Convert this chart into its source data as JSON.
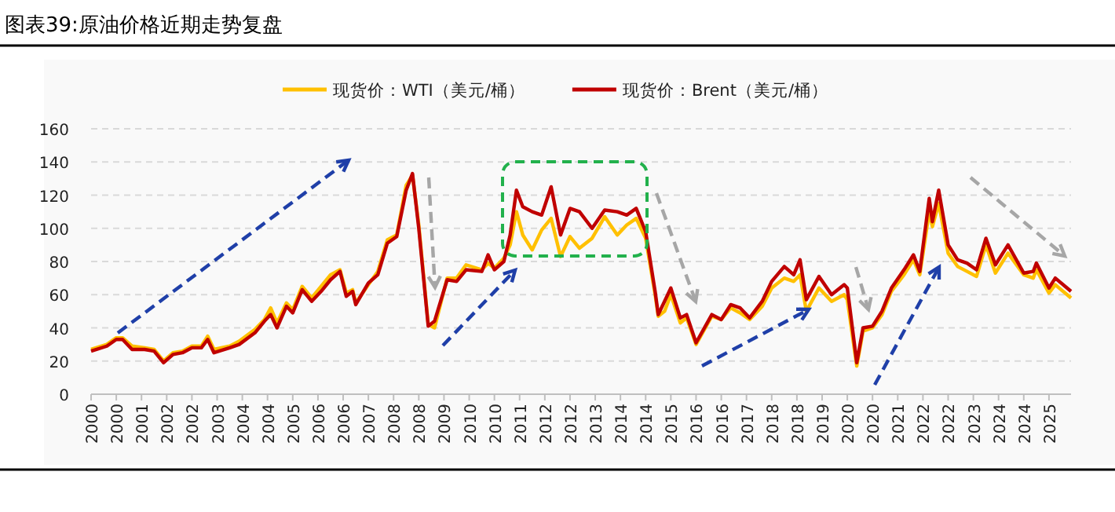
{
  "chart_data": {
    "type": "line",
    "title": "图表39:原油价格近期走势复盘",
    "ylim": [
      0,
      160
    ],
    "yticks": [
      0,
      20,
      40,
      60,
      80,
      100,
      120,
      140,
      160
    ],
    "xlim": [
      "2000-01",
      "2025-12"
    ],
    "xticks": [
      {
        "value": "2000-01",
        "label": "2000"
      },
      {
        "value": "2000-09",
        "label": "2000"
      },
      {
        "value": "2001-05",
        "label": "2001"
      },
      {
        "value": "2002-01",
        "label": "2002"
      },
      {
        "value": "2002-09",
        "label": "2002"
      },
      {
        "value": "2003-05",
        "label": "2003"
      },
      {
        "value": "2004-01",
        "label": "2004"
      },
      {
        "value": "2004-09",
        "label": "2004"
      },
      {
        "value": "2005-05",
        "label": "2005"
      },
      {
        "value": "2006-01",
        "label": "2006"
      },
      {
        "value": "2006-09",
        "label": "2006"
      },
      {
        "value": "2007-05",
        "label": "2007"
      },
      {
        "value": "2008-01",
        "label": "2008"
      },
      {
        "value": "2008-09",
        "label": "2008"
      },
      {
        "value": "2009-05",
        "label": "2009"
      },
      {
        "value": "2010-01",
        "label": "2010"
      },
      {
        "value": "2010-09",
        "label": "2010"
      },
      {
        "value": "2011-05",
        "label": "2011"
      },
      {
        "value": "2012-01",
        "label": "2012"
      },
      {
        "value": "2012-09",
        "label": "2012"
      },
      {
        "value": "2013-05",
        "label": "2013"
      },
      {
        "value": "2014-01",
        "label": "2014"
      },
      {
        "value": "2014-09",
        "label": "2014"
      },
      {
        "value": "2015-05",
        "label": "2015"
      },
      {
        "value": "2016-01",
        "label": "2016"
      },
      {
        "value": "2016-09",
        "label": "2016"
      },
      {
        "value": "2017-05",
        "label": "2017"
      },
      {
        "value": "2018-01",
        "label": "2018"
      },
      {
        "value": "2018-09",
        "label": "2018"
      },
      {
        "value": "2019-05",
        "label": "2019"
      },
      {
        "value": "2020-01",
        "label": "2020"
      },
      {
        "value": "2020-09",
        "label": "2020"
      },
      {
        "value": "2021-05",
        "label": "2021"
      },
      {
        "value": "2022-01",
        "label": "2022"
      },
      {
        "value": "2022-09",
        "label": "2022"
      },
      {
        "value": "2023-05",
        "label": "2023"
      },
      {
        "value": "2024-01",
        "label": "2024"
      },
      {
        "value": "2024-09",
        "label": "2024"
      },
      {
        "value": "2025-05",
        "label": "2025"
      }
    ],
    "grid": "y",
    "legend": "top",
    "line_style": "solid",
    "series": [
      {
        "name": "现货价：WTI（美元/桶）",
        "color": "#ffc000",
        "x": [
          "2000-01",
          "2000-06",
          "2000-09",
          "2000-11",
          "2001-02",
          "2001-06",
          "2001-09",
          "2001-12",
          "2002-03",
          "2002-06",
          "2002-09",
          "2002-12",
          "2003-02",
          "2003-04",
          "2003-09",
          "2003-12",
          "2004-05",
          "2004-08",
          "2004-10",
          "2004-12",
          "2005-03",
          "2005-05",
          "2005-08",
          "2005-11",
          "2006-02",
          "2006-05",
          "2006-08",
          "2006-10",
          "2006-12",
          "2007-01",
          "2007-05",
          "2007-08",
          "2007-11",
          "2008-02",
          "2008-05",
          "2008-07",
          "2008-09",
          "2008-12",
          "2009-02",
          "2009-06",
          "2009-09",
          "2009-12",
          "2010-05",
          "2010-07",
          "2010-09",
          "2010-12",
          "2011-02",
          "2011-04",
          "2011-06",
          "2011-09",
          "2011-12",
          "2012-03",
          "2012-06",
          "2012-09",
          "2012-12",
          "2013-04",
          "2013-08",
          "2013-12",
          "2014-03",
          "2014-06",
          "2014-09",
          "2014-12",
          "2015-01",
          "2015-03",
          "2015-05",
          "2015-08",
          "2015-10",
          "2016-01",
          "2016-06",
          "2016-09",
          "2016-12",
          "2017-03",
          "2017-06",
          "2017-10",
          "2018-01",
          "2018-05",
          "2018-08",
          "2018-10",
          "2018-12",
          "2019-04",
          "2019-08",
          "2019-12",
          "2020-01",
          "2020-04",
          "2020-06",
          "2020-09",
          "2020-12",
          "2021-03",
          "2021-07",
          "2021-10",
          "2021-12",
          "2022-03",
          "2022-04",
          "2022-06",
          "2022-09",
          "2022-12",
          "2023-03",
          "2023-06",
          "2023-09",
          "2023-12",
          "2024-04",
          "2024-09",
          "2024-12",
          "2025-01",
          "2025-05",
          "2025-07",
          "2025-12"
        ],
        "values": [
          27,
          30,
          34,
          34,
          29,
          28,
          27,
          20,
          25,
          26,
          29,
          29,
          35,
          27,
          29,
          32,
          39,
          45,
          52,
          43,
          55,
          51,
          65,
          58,
          65,
          72,
          75,
          61,
          63,
          55,
          66,
          74,
          93,
          96,
          126,
          132,
          102,
          42,
          40,
          70,
          70,
          78,
          75,
          79,
          76,
          82,
          90,
          110,
          96,
          87,
          99,
          106,
          83,
          95,
          88,
          94,
          107,
          96,
          102,
          106,
          94,
          60,
          47,
          50,
          60,
          43,
          46,
          30,
          47,
          45,
          52,
          49,
          45,
          53,
          64,
          70,
          68,
          72,
          50,
          64,
          56,
          60,
          57,
          17,
          38,
          40,
          48,
          62,
          72,
          81,
          72,
          110,
          101,
          115,
          85,
          77,
          74,
          71,
          90,
          73,
          85,
          72,
          70,
          75,
          61,
          66,
          58
        ]
      },
      {
        "name": "现货价：Brent（美元/桶）",
        "color": "#c00000",
        "x": [
          "2000-01",
          "2000-06",
          "2000-09",
          "2000-11",
          "2001-02",
          "2001-06",
          "2001-09",
          "2001-12",
          "2002-03",
          "2002-06",
          "2002-09",
          "2002-12",
          "2003-02",
          "2003-04",
          "2003-09",
          "2003-12",
          "2004-05",
          "2004-08",
          "2004-10",
          "2004-12",
          "2005-03",
          "2005-05",
          "2005-08",
          "2005-11",
          "2006-02",
          "2006-05",
          "2006-08",
          "2006-10",
          "2006-12",
          "2007-01",
          "2007-05",
          "2007-08",
          "2007-11",
          "2008-02",
          "2008-05",
          "2008-07",
          "2008-09",
          "2008-12",
          "2009-02",
          "2009-06",
          "2009-09",
          "2009-12",
          "2010-05",
          "2010-07",
          "2010-09",
          "2010-12",
          "2011-02",
          "2011-04",
          "2011-06",
          "2011-09",
          "2011-12",
          "2012-03",
          "2012-06",
          "2012-09",
          "2012-12",
          "2013-04",
          "2013-08",
          "2013-12",
          "2014-03",
          "2014-06",
          "2014-09",
          "2014-12",
          "2015-01",
          "2015-03",
          "2015-05",
          "2015-08",
          "2015-10",
          "2016-01",
          "2016-06",
          "2016-09",
          "2016-12",
          "2017-03",
          "2017-06",
          "2017-10",
          "2018-01",
          "2018-05",
          "2018-08",
          "2018-10",
          "2018-12",
          "2019-04",
          "2019-08",
          "2019-12",
          "2020-01",
          "2020-04",
          "2020-06",
          "2020-09",
          "2020-12",
          "2021-03",
          "2021-07",
          "2021-10",
          "2021-12",
          "2022-03",
          "2022-04",
          "2022-06",
          "2022-09",
          "2022-12",
          "2023-03",
          "2023-06",
          "2023-09",
          "2023-12",
          "2024-04",
          "2024-09",
          "2024-12",
          "2025-01",
          "2025-05",
          "2025-07",
          "2025-12"
        ],
        "values": [
          26,
          29,
          33,
          33,
          27,
          27,
          26,
          19,
          24,
          25,
          28,
          28,
          33,
          25,
          28,
          30,
          37,
          44,
          48,
          40,
          53,
          49,
          63,
          56,
          62,
          69,
          74,
          59,
          62,
          54,
          67,
          72,
          91,
          95,
          123,
          133,
          100,
          41,
          44,
          69,
          68,
          75,
          74,
          84,
          75,
          80,
          96,
          123,
          113,
          110,
          108,
          125,
          96,
          112,
          110,
          100,
          111,
          110,
          108,
          112,
          98,
          62,
          48,
          56,
          64,
          46,
          48,
          31,
          48,
          45,
          54,
          52,
          46,
          56,
          68,
          77,
          72,
          81,
          57,
          71,
          60,
          66,
          64,
          19,
          40,
          41,
          50,
          64,
          75,
          84,
          74,
          118,
          104,
          123,
          90,
          81,
          79,
          75,
          94,
          78,
          90,
          73,
          74,
          79,
          64,
          70,
          62
        ]
      }
    ]
  }
}
